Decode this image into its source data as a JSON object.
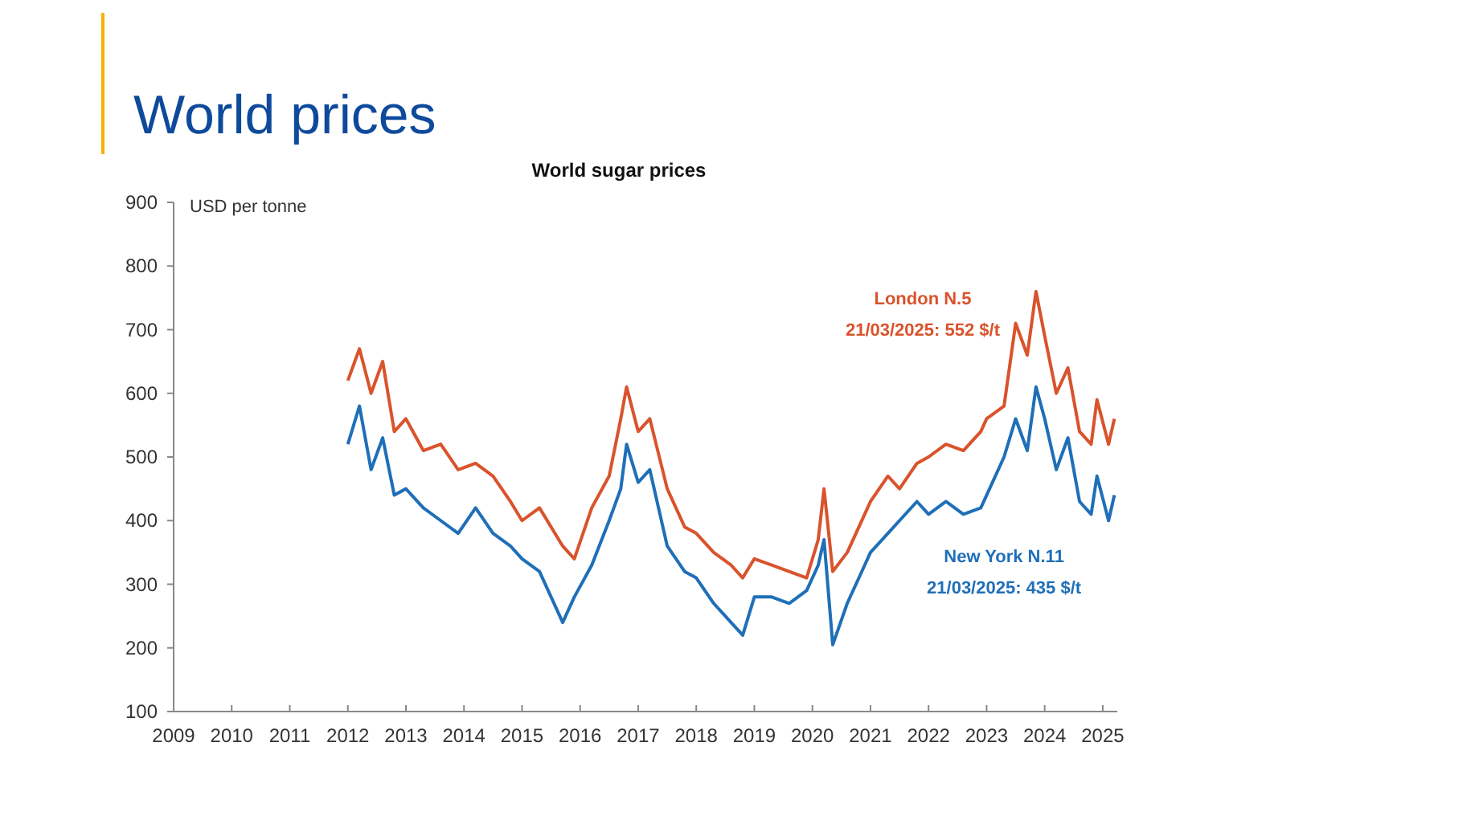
{
  "chart_data": {
    "type": "line",
    "title": "World prices",
    "subtitle": "World sugar prices",
    "ylabel": "USD per tonne",
    "annotations": [
      "London N.5",
      "21/03/2025:  552 $/t",
      "New York N.11",
      "21/03/2025:  435 $/t"
    ],
    "xlim": [
      2009,
      2025.25
    ],
    "xticks": [
      2009,
      2010,
      2011,
      2012,
      2013,
      2014,
      2015,
      2016,
      2017,
      2018,
      2019,
      2020,
      2021,
      2022,
      2023,
      2024,
      2025
    ],
    "ylim": [
      100,
      900
    ],
    "yticks": [
      100,
      200,
      300,
      400,
      500,
      600,
      700,
      800,
      900
    ],
    "grid": false,
    "marker": "none",
    "line_style": "solid",
    "x": [
      2012.0,
      2012.2,
      2012.4,
      2012.6,
      2012.8,
      2013.0,
      2013.3,
      2013.6,
      2013.9,
      2014.2,
      2014.5,
      2014.8,
      2015.0,
      2015.3,
      2015.7,
      2015.9,
      2016.2,
      2016.5,
      2016.7,
      2016.8,
      2017.0,
      2017.2,
      2017.5,
      2017.8,
      2018.0,
      2018.3,
      2018.6,
      2018.8,
      2019.0,
      2019.3,
      2019.6,
      2019.9,
      2020.1,
      2020.2,
      2020.35,
      2020.6,
      2020.9,
      2021.0,
      2021.3,
      2021.5,
      2021.8,
      2022.0,
      2022.3,
      2022.6,
      2022.9,
      2023.0,
      2023.3,
      2023.5,
      2023.7,
      2023.85,
      2024.0,
      2024.2,
      2024.4,
      2024.6,
      2024.8,
      2024.9,
      2025.1,
      2025.2
    ],
    "series": [
      {
        "color": "#d9532c",
        "values": [
          620,
          670,
          600,
          650,
          540,
          560,
          510,
          520,
          480,
          490,
          470,
          430,
          400,
          420,
          360,
          340,
          420,
          470,
          560,
          610,
          540,
          560,
          450,
          390,
          380,
          350,
          330,
          310,
          340,
          330,
          320,
          310,
          370,
          450,
          320,
          350,
          410,
          430,
          470,
          450,
          490,
          500,
          520,
          510,
          540,
          560,
          580,
          710,
          660,
          760,
          690,
          600,
          640,
          540,
          520,
          590,
          520,
          560
        ]
      },
      {
        "color": "#1f6fb8",
        "values": [
          520,
          580,
          480,
          530,
          440,
          450,
          420,
          400,
          380,
          420,
          380,
          360,
          340,
          320,
          240,
          280,
          330,
          400,
          450,
          520,
          460,
          480,
          360,
          320,
          310,
          270,
          240,
          220,
          280,
          280,
          270,
          290,
          330,
          370,
          205,
          270,
          330,
          350,
          380,
          400,
          430,
          410,
          430,
          410,
          420,
          440,
          500,
          560,
          510,
          610,
          560,
          480,
          530,
          430,
          410,
          470,
          400,
          440
        ]
      }
    ]
  }
}
